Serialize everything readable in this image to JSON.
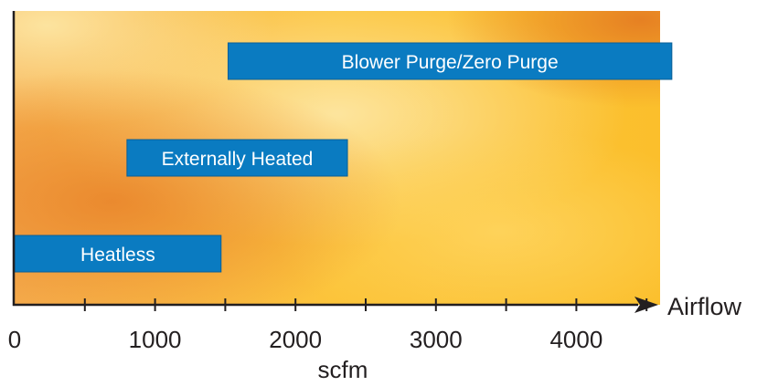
{
  "chart_data": {
    "type": "bar",
    "orientation": "horizontal-range",
    "title": "",
    "xlabel": "scfm",
    "ylabel": "",
    "axis_end_label": "Airflow",
    "xlim": [
      0,
      4600
    ],
    "x_ticks": [
      0,
      1000,
      2000,
      3000,
      4000
    ],
    "x_minor_step": 500,
    "grid": false,
    "legend": "none",
    "bars": [
      {
        "label": "Blower Purge/Zero Purge",
        "start": 1520,
        "end": 4680,
        "level": 3
      },
      {
        "label": "Externally Heated",
        "start": 800,
        "end": 2370,
        "level": 2
      },
      {
        "label": "Heatless",
        "start": 0,
        "end": 1470,
        "level": 1
      }
    ],
    "colors": {
      "bar": "#0a7bc1",
      "bar_border": "#0b5f96",
      "axis": "#231f20",
      "bg_light": "#fde7a0",
      "bg_mid": "#fdc02a",
      "bg_dark": "#ec8a2c"
    }
  }
}
